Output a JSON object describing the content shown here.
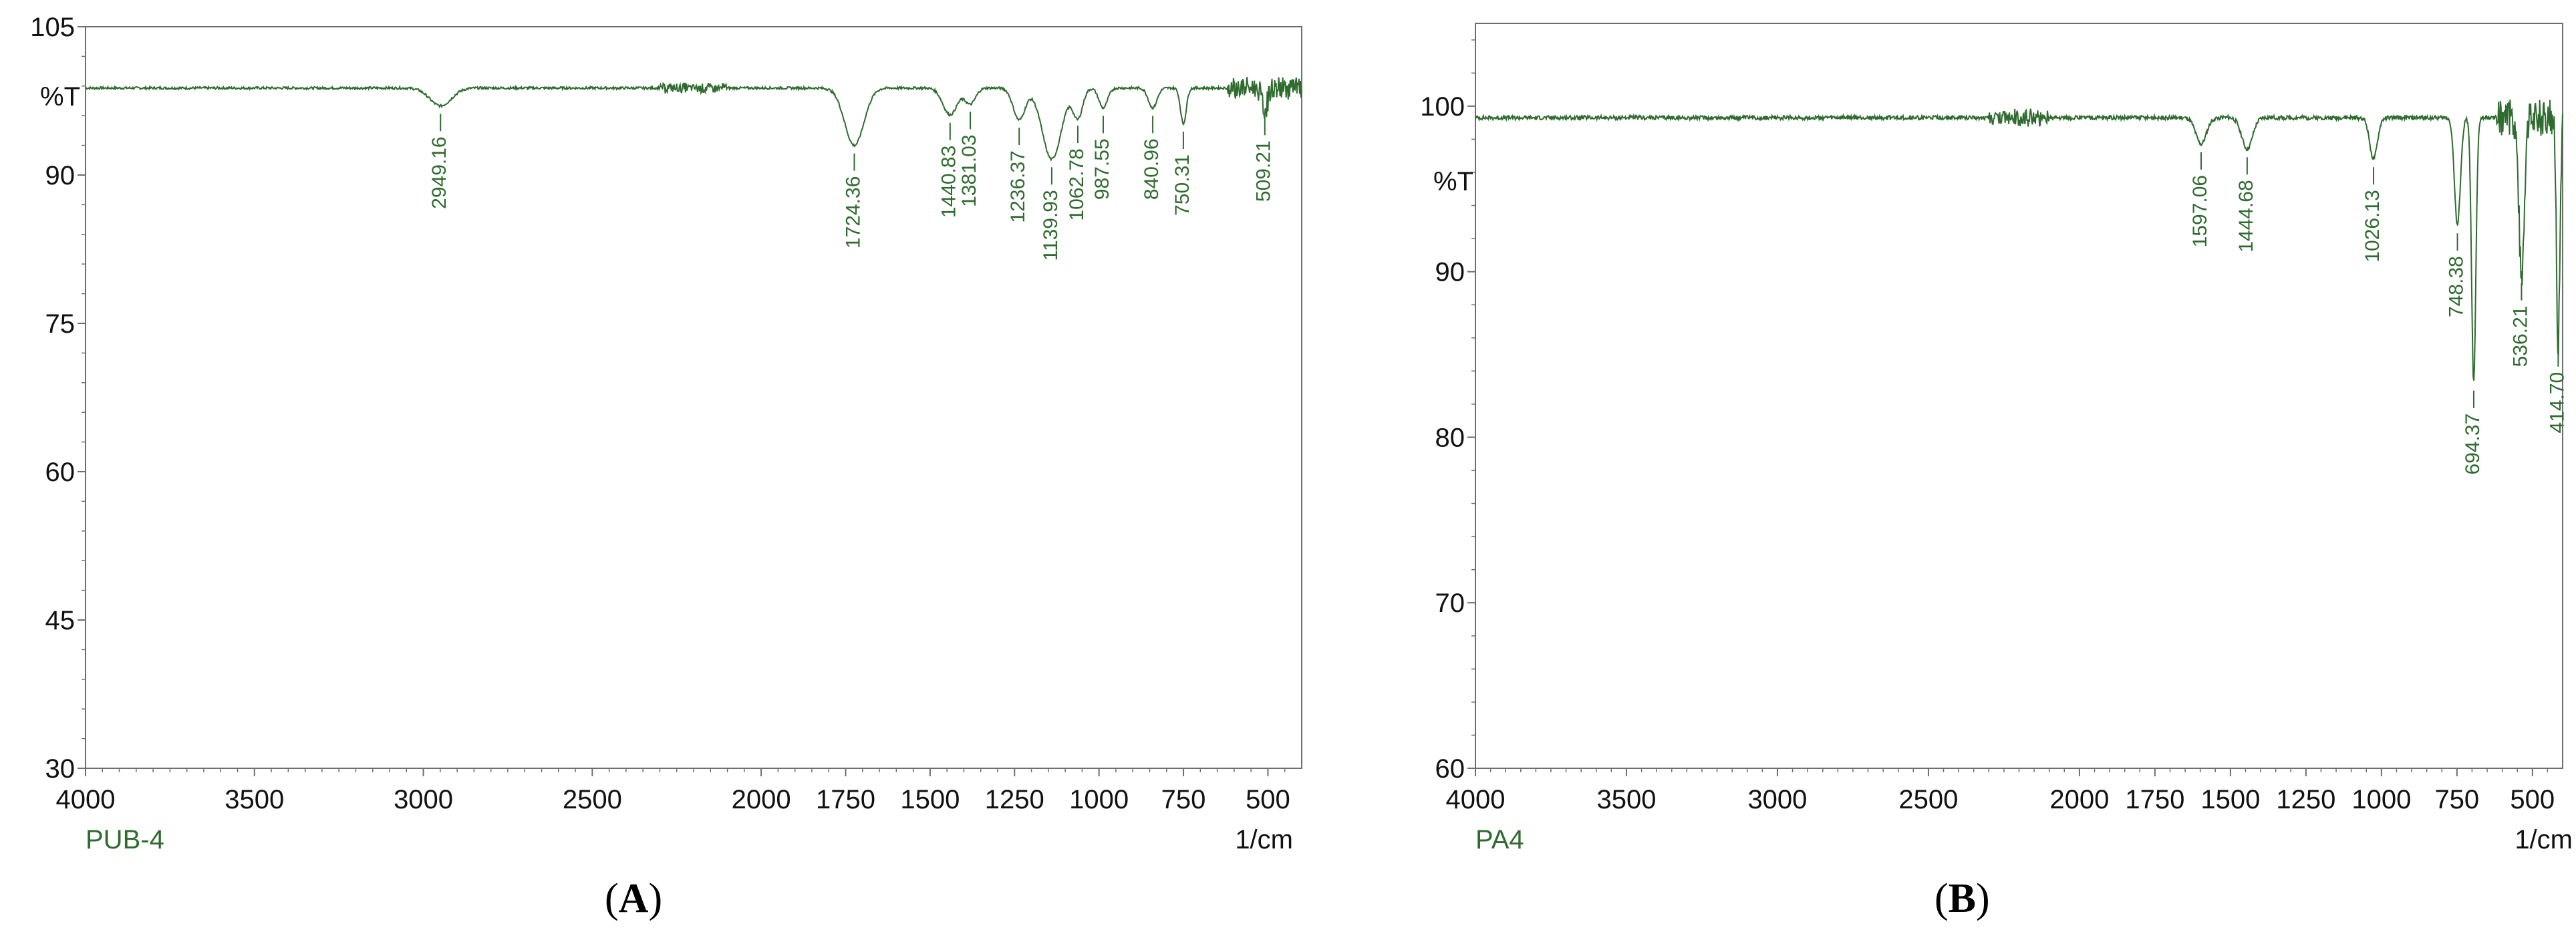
{
  "chart_data": [
    {
      "type": "line",
      "panel_caption": "A",
      "sample": "PUB-4",
      "ylabel": "%T",
      "xunit": "1/cm",
      "xlim": [
        4000,
        400
      ],
      "ylim": [
        30,
        105
      ],
      "xticks": [
        4000,
        3500,
        3000,
        2500,
        2000,
        1750,
        1500,
        1250,
        1000,
        750,
        500
      ],
      "xtick_labels": [
        "4000",
        "3500",
        "3000",
        "2500",
        "2000",
        "1750",
        "1500",
        "1250",
        "1000",
        "750",
        "500"
      ],
      "yticks": [
        30,
        45,
        60,
        75,
        90,
        105
      ],
      "ytick_labels": [
        "30",
        "45",
        "60",
        "75",
        "90",
        "105"
      ],
      "line_color": "#2f6b2f",
      "baseline": 98.8,
      "peaks": [
        {
          "label": "2949.16",
          "x": 2949.16,
          "depth": 1.8,
          "width": 45
        },
        {
          "label": "1724.36",
          "x": 1724.36,
          "depth": 5.8,
          "width": 40
        },
        {
          "label": "1440.83",
          "x": 1440.83,
          "depth": 2.7,
          "width": 30
        },
        {
          "label": "1381.03",
          "x": 1381.03,
          "depth": 1.6,
          "width": 22
        },
        {
          "label": "1236.37",
          "x": 1236.37,
          "depth": 3.2,
          "width": 25
        },
        {
          "label": "1139.93",
          "x": 1139.93,
          "depth": 7.2,
          "width": 40
        },
        {
          "label": "1062.78",
          "x": 1062.78,
          "depth": 3.0,
          "width": 20
        },
        {
          "label": "987.55",
          "x": 987.55,
          "depth": 2.0,
          "width": 18
        },
        {
          "label": "840.96",
          "x": 840.96,
          "depth": 2.0,
          "width": 18
        },
        {
          "label": "750.31",
          "x": 750.31,
          "depth": 3.6,
          "width": 12
        },
        {
          "label": "509.21",
          "x": 509.21,
          "depth": 2.2,
          "width": 12
        }
      ]
    },
    {
      "type": "line",
      "panel_caption": "B",
      "sample": "PA4",
      "ylabel": "%T",
      "xunit": "1/cm",
      "xlim": [
        4000,
        400
      ],
      "ylim": [
        60,
        105
      ],
      "xticks": [
        4000,
        3500,
        3000,
        2500,
        2000,
        1750,
        1500,
        1250,
        1000,
        750,
        500
      ],
      "xtick_labels": [
        "4000",
        "3500",
        "3000",
        "2500",
        "2000",
        "1750",
        "1500",
        "1250",
        "1000",
        "750",
        "500"
      ],
      "yticks": [
        60,
        70,
        80,
        90,
        100
      ],
      "ytick_labels": [
        "60",
        "70",
        "80",
        "90",
        "100"
      ],
      "line_color": "#2f6b2f",
      "baseline": 99.3,
      "peaks": [
        {
          "label": "1597.06",
          "x": 1597.06,
          "depth": 1.6,
          "width": 25
        },
        {
          "label": "1444.68",
          "x": 1444.68,
          "depth": 1.9,
          "width": 25
        },
        {
          "label": "1026.13",
          "x": 1026.13,
          "depth": 2.5,
          "width": 18
        },
        {
          "label": "748.38",
          "x": 748.38,
          "depth": 6.5,
          "width": 14
        },
        {
          "label": "694.37",
          "x": 694.37,
          "depth": 16.0,
          "width": 10
        },
        {
          "label": "536.21",
          "x": 536.21,
          "depth": 9.5,
          "width": 12
        },
        {
          "label": "414.70",
          "x": 414.7,
          "depth": 13.5,
          "width": 8
        }
      ]
    }
  ]
}
